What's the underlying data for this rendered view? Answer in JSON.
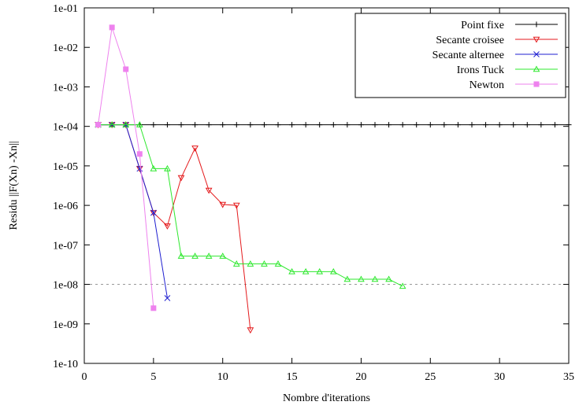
{
  "chart_data": {
    "type": "line",
    "title": "",
    "xlabel": "Nombre d'iterations",
    "ylabel": "Residu ||F(Xn) -Xn||",
    "xlim": [
      0,
      35
    ],
    "ylim": [
      1e-10,
      0.1
    ],
    "yscale": "log",
    "xticks": [
      "0",
      "5",
      "10",
      "15",
      "20",
      "25",
      "30",
      "35"
    ],
    "yticks": [
      "1e-10",
      "1e-09",
      "1e-08",
      "1e-07",
      "1e-06",
      "1e-05",
      "1e-04",
      "1e-03",
      "1e-02",
      "1e-01"
    ],
    "legend_position": "top-right",
    "reference_line": {
      "y": 1e-08,
      "style": "dashed",
      "color": "#999999"
    },
    "series": [
      {
        "name": "Point fixe",
        "color": "#000000",
        "marker": "plus",
        "x": [
          1,
          2,
          3,
          4,
          5,
          6,
          7,
          8,
          9,
          10,
          11,
          12,
          13,
          14,
          15,
          16,
          17,
          18,
          19,
          20,
          21,
          22,
          23,
          24,
          25,
          26,
          27,
          28,
          29,
          30,
          31,
          32,
          33,
          34,
          35
        ],
        "y": [
          0.00011,
          0.00011,
          0.00011,
          0.00011,
          0.00011,
          0.00011,
          0.00011,
          0.00011,
          0.00011,
          0.00011,
          0.00011,
          0.00011,
          0.00011,
          0.00011,
          0.00011,
          0.00011,
          0.00011,
          0.00011,
          0.00011,
          0.00011,
          0.00011,
          0.00011,
          0.00011,
          0.00011,
          0.00011,
          0.00011,
          0.00011,
          0.00011,
          0.00011,
          0.00011,
          0.00011,
          0.00011,
          0.00011,
          0.00011,
          0.00011
        ]
      },
      {
        "name": "Secante croisee",
        "color": "#e41a1c",
        "marker": "triangle-down",
        "x": [
          1,
          2,
          3,
          4,
          5,
          6,
          7,
          8,
          9,
          10,
          11,
          12
        ],
        "y": [
          0.00011,
          0.00011,
          0.00011,
          8.5e-06,
          6.5e-07,
          3e-07,
          5e-06,
          2.8e-05,
          2.4e-06,
          1.05e-06,
          1e-06,
          7e-10
        ]
      },
      {
        "name": "Secante alternee",
        "color": "#1f1fd0",
        "marker": "x",
        "x": [
          1,
          2,
          3,
          4,
          5,
          6
        ],
        "y": [
          0.00011,
          0.00011,
          0.00011,
          8.5e-06,
          6.5e-07,
          4.5e-09
        ]
      },
      {
        "name": "Irons Tuck",
        "color": "#2ee82e",
        "marker": "triangle-up",
        "x": [
          1,
          2,
          3,
          4,
          5,
          6,
          7,
          8,
          9,
          10,
          11,
          12,
          13,
          14,
          15,
          16,
          17,
          18,
          19,
          20,
          21,
          22,
          23
        ],
        "y": [
          0.00011,
          0.00011,
          0.00011,
          0.00011,
          8.5e-06,
          8.5e-06,
          5.2e-08,
          5.2e-08,
          5.2e-08,
          5.2e-08,
          3.3e-08,
          3.3e-08,
          3.3e-08,
          3.3e-08,
          2.1e-08,
          2.1e-08,
          2.1e-08,
          2.1e-08,
          1.35e-08,
          1.35e-08,
          1.35e-08,
          1.35e-08,
          9e-09
        ]
      },
      {
        "name": "Newton",
        "color": "#ee82ee",
        "marker": "square",
        "x": [
          1,
          2,
          3,
          4,
          5
        ],
        "y": [
          0.00011,
          0.032,
          0.0028,
          2e-05,
          2.5e-09
        ]
      }
    ]
  }
}
